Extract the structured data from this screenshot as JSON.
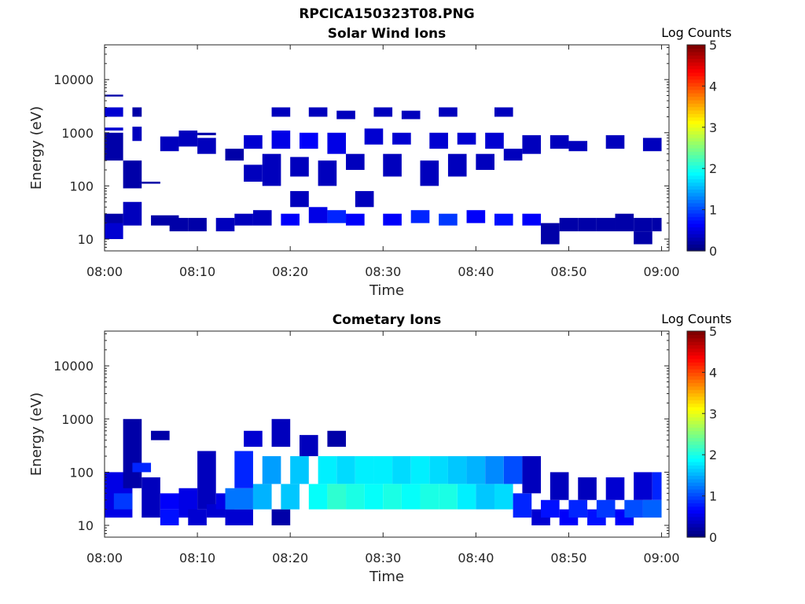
{
  "figure_title": "RPCICA150323T08.PNG",
  "chart_data": [
    {
      "type": "heatmap",
      "title": "Solar Wind Ions",
      "xlabel": "Time",
      "ylabel": "Energy (eV)",
      "x_tick_labels": [
        "08:00",
        "08:10",
        "08:20",
        "08:30",
        "08:40",
        "08:50",
        "09:00"
      ],
      "y_tick_labels": [
        "10",
        "100",
        "1000",
        "10000"
      ],
      "y_scale": "log",
      "ylim": [
        6,
        45000
      ],
      "colorbar_label": "Log Counts",
      "colorbar_ticks": [
        "0",
        "1",
        "2",
        "3",
        "4",
        "5"
      ],
      "clim": [
        0,
        5
      ],
      "colormap": "jet",
      "cells": [
        [
          0,
          2,
          10,
          25,
          0.4
        ],
        [
          0,
          2,
          20,
          30,
          0.2
        ],
        [
          0,
          2,
          300,
          1000,
          0.2
        ],
        [
          0,
          2,
          1100,
          1250,
          0.4
        ],
        [
          0,
          2,
          2000,
          3000,
          0.4
        ],
        [
          0,
          2,
          4800,
          5200,
          0.2
        ],
        [
          2,
          4,
          18,
          50,
          0.3
        ],
        [
          2,
          4,
          90,
          300,
          0.2
        ],
        [
          3,
          4,
          700,
          1300,
          0.3
        ],
        [
          3,
          4,
          2000,
          3000,
          0.2
        ],
        [
          4,
          6,
          110,
          120,
          0.2
        ],
        [
          5,
          8,
          18,
          28,
          0.2
        ],
        [
          6,
          8,
          450,
          850,
          0.3
        ],
        [
          7,
          9,
          14,
          25,
          0.2
        ],
        [
          8,
          10,
          550,
          1100,
          0.3
        ],
        [
          9,
          11,
          14,
          25,
          0.2
        ],
        [
          10,
          12,
          400,
          800,
          0.3
        ],
        [
          10,
          12,
          900,
          1000,
          0.2
        ],
        [
          12,
          14,
          14,
          25,
          0.3
        ],
        [
          13,
          15,
          300,
          500,
          0.2
        ],
        [
          14,
          16,
          18,
          30,
          0.3
        ],
        [
          15,
          17,
          120,
          250,
          0.3
        ],
        [
          15,
          17,
          500,
          900,
          0.4
        ],
        [
          16,
          18,
          18,
          35,
          0.3
        ],
        [
          17,
          19,
          100,
          400,
          0.3
        ],
        [
          18,
          20,
          500,
          1100,
          0.5
        ],
        [
          18,
          20,
          2000,
          3000,
          0.3
        ],
        [
          19,
          21,
          18,
          30,
          0.6
        ],
        [
          20,
          22,
          40,
          80,
          0.3
        ],
        [
          20,
          22,
          150,
          350,
          0.3
        ],
        [
          21,
          23,
          500,
          1000,
          0.6
        ],
        [
          22,
          24,
          20,
          40,
          0.5
        ],
        [
          22,
          24,
          2000,
          3000,
          0.3
        ],
        [
          23,
          25,
          100,
          300,
          0.3
        ],
        [
          24,
          26,
          20,
          35,
          0.8
        ],
        [
          24,
          26,
          400,
          1000,
          0.5
        ],
        [
          25,
          27,
          1800,
          2600,
          0.3
        ],
        [
          26,
          28,
          18,
          30,
          0.6
        ],
        [
          26,
          28,
          200,
          400,
          0.3
        ],
        [
          27,
          29,
          40,
          80,
          0.3
        ],
        [
          28,
          30,
          600,
          1200,
          0.4
        ],
        [
          29,
          31,
          2000,
          3000,
          0.3
        ],
        [
          30,
          32,
          18,
          30,
          0.6
        ],
        [
          30,
          32,
          150,
          400,
          0.3
        ],
        [
          31,
          33,
          600,
          1000,
          0.4
        ],
        [
          32,
          34,
          1800,
          2600,
          0.3
        ],
        [
          33,
          35,
          20,
          35,
          0.8
        ],
        [
          34,
          36,
          100,
          300,
          0.3
        ],
        [
          35,
          37,
          500,
          1000,
          0.4
        ],
        [
          36,
          38,
          18,
          30,
          0.9
        ],
        [
          36,
          38,
          2000,
          3000,
          0.3
        ],
        [
          37,
          39,
          150,
          400,
          0.3
        ],
        [
          38,
          40,
          600,
          1000,
          0.4
        ],
        [
          39,
          41,
          20,
          35,
          0.6
        ],
        [
          40,
          42,
          200,
          400,
          0.3
        ],
        [
          41,
          43,
          500,
          1000,
          0.4
        ],
        [
          42,
          44,
          18,
          30,
          0.7
        ],
        [
          42,
          44,
          2000,
          3000,
          0.3
        ],
        [
          43,
          45,
          300,
          500,
          0.3
        ],
        [
          45,
          47,
          18,
          30,
          0.6
        ],
        [
          45,
          47,
          400,
          900,
          0.3
        ],
        [
          47,
          49,
          8,
          20,
          0.2
        ],
        [
          48,
          50,
          500,
          900,
          0.3
        ],
        [
          49,
          51,
          14,
          25,
          0.2
        ],
        [
          50,
          52,
          450,
          700,
          0.3
        ],
        [
          51,
          53,
          14,
          25,
          0.2
        ],
        [
          53,
          55,
          14,
          25,
          0.2
        ],
        [
          54,
          56,
          500,
          900,
          0.3
        ],
        [
          55,
          57,
          14,
          30,
          0.2
        ],
        [
          57,
          59,
          14,
          25,
          0.2
        ],
        [
          57,
          59,
          8,
          14,
          0.2
        ],
        [
          58,
          60,
          450,
          800,
          0.3
        ],
        [
          59,
          60,
          14,
          25,
          0.2
        ]
      ]
    },
    {
      "type": "heatmap",
      "title": "Cometary Ions",
      "xlabel": "Time",
      "ylabel": "Energy (eV)",
      "x_tick_labels": [
        "08:00",
        "08:10",
        "08:20",
        "08:30",
        "08:40",
        "08:50",
        "09:00"
      ],
      "y_tick_labels": [
        "10",
        "100",
        "1000",
        "10000"
      ],
      "y_scale": "log",
      "ylim": [
        6,
        45000
      ],
      "colorbar_label": "Log Counts",
      "colorbar_ticks": [
        "0",
        "1",
        "2",
        "3",
        "4",
        "5"
      ],
      "clim": [
        0,
        5
      ],
      "colormap": "jet",
      "cells": [
        [
          0,
          3,
          14,
          100,
          0.5
        ],
        [
          1,
          3,
          20,
          40,
          0.9
        ],
        [
          2,
          4,
          50,
          1000,
          0.2
        ],
        [
          3,
          5,
          100,
          150,
          0.8
        ],
        [
          4,
          6,
          14,
          80,
          0.3
        ],
        [
          5,
          7,
          400,
          600,
          0.2
        ],
        [
          6,
          8,
          10,
          20,
          0.7
        ],
        [
          6,
          9,
          20,
          40,
          0.6
        ],
        [
          8,
          10,
          14,
          50,
          0.5
        ],
        [
          9,
          11,
          10,
          20,
          0.4
        ],
        [
          10,
          12,
          20,
          250,
          0.3
        ],
        [
          11,
          13,
          14,
          25,
          0.4
        ],
        [
          12,
          14,
          20,
          40,
          0.5
        ],
        [
          13,
          16,
          10,
          20,
          0.4
        ],
        [
          13,
          16,
          20,
          50,
          1.2
        ],
        [
          14,
          16,
          50,
          250,
          0.8
        ],
        [
          15,
          17,
          300,
          600,
          0.4
        ],
        [
          16,
          18,
          20,
          60,
          1.5
        ],
        [
          17,
          19,
          60,
          200,
          1.4
        ],
        [
          18,
          20,
          10,
          20,
          0.2
        ],
        [
          18,
          20,
          300,
          1000,
          0.3
        ],
        [
          19,
          21,
          20,
          60,
          1.6
        ],
        [
          20,
          22,
          60,
          200,
          1.6
        ],
        [
          21,
          23,
          200,
          500,
          0.3
        ],
        [
          22,
          24,
          20,
          60,
          1.9
        ],
        [
          23,
          25,
          60,
          200,
          1.8
        ],
        [
          24,
          26,
          20,
          60,
          2.1
        ],
        [
          24,
          26,
          300,
          600,
          0.2
        ],
        [
          25,
          27,
          60,
          200,
          1.7
        ],
        [
          26,
          28,
          20,
          60,
          2.0
        ],
        [
          27,
          29,
          60,
          200,
          1.8
        ],
        [
          28,
          30,
          20,
          60,
          1.9
        ],
        [
          29,
          31,
          60,
          200,
          1.8
        ],
        [
          30,
          32,
          20,
          60,
          2.0
        ],
        [
          31,
          33,
          60,
          200,
          1.7
        ],
        [
          32,
          34,
          20,
          60,
          1.9
        ],
        [
          33,
          35,
          60,
          200,
          1.8
        ],
        [
          34,
          36,
          20,
          60,
          2.0
        ],
        [
          35,
          37,
          60,
          200,
          1.7
        ],
        [
          36,
          38,
          20,
          60,
          2.0
        ],
        [
          37,
          39,
          60,
          200,
          1.6
        ],
        [
          38,
          40,
          20,
          60,
          1.8
        ],
        [
          39,
          41,
          60,
          200,
          1.5
        ],
        [
          40,
          42,
          20,
          60,
          1.6
        ],
        [
          41,
          43,
          60,
          200,
          1.3
        ],
        [
          42,
          44,
          20,
          60,
          1.7
        ],
        [
          43,
          45,
          60,
          200,
          1.0
        ],
        [
          44,
          46,
          14,
          40,
          0.8
        ],
        [
          45,
          47,
          40,
          200,
          0.3
        ],
        [
          46,
          48,
          10,
          20,
          0.4
        ],
        [
          47,
          49,
          14,
          30,
          0.7
        ],
        [
          48,
          50,
          30,
          100,
          0.3
        ],
        [
          49,
          51,
          10,
          20,
          0.6
        ],
        [
          50,
          52,
          14,
          30,
          0.8
        ],
        [
          51,
          53,
          30,
          80,
          0.3
        ],
        [
          52,
          54,
          10,
          20,
          0.7
        ],
        [
          53,
          55,
          14,
          30,
          0.9
        ],
        [
          54,
          56,
          30,
          80,
          0.4
        ],
        [
          55,
          57,
          10,
          20,
          0.6
        ],
        [
          56,
          58,
          14,
          30,
          1.0
        ],
        [
          57,
          59,
          30,
          100,
          0.4
        ],
        [
          58,
          60,
          14,
          30,
          1.1
        ],
        [
          59,
          60,
          30,
          100,
          0.8
        ]
      ]
    }
  ]
}
